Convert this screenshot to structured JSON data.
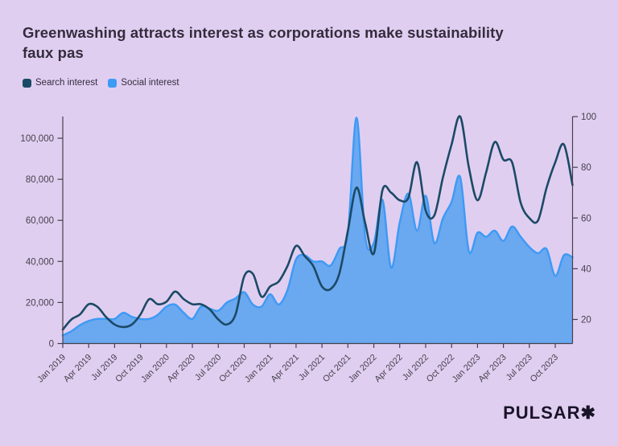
{
  "title": {
    "line1": "Greenwashing attracts interest as corporations make sustainability",
    "line2": "faux pas"
  },
  "legend": [
    {
      "label": "Search interest",
      "color": "#1b4a66"
    },
    {
      "label": "Social interest",
      "color": "#3d9af5"
    }
  ],
  "logo": {
    "text": "PULSAR✱"
  },
  "colors": {
    "background": "#e0cef0",
    "title": "#342c3e",
    "axis": "#46404d",
    "tick_label": "#46404d",
    "search_line": "#1b4a66",
    "social_fill": "#6aa8f0",
    "social_stroke": "#3d9af5"
  },
  "chart_data": {
    "type": "line",
    "title": "Greenwashing attracts interest as corporations make sustainability faux pas",
    "xlabel": "",
    "ylabel_left": "",
    "ylabel_right": "",
    "grid": false,
    "legend_position": "top-left",
    "x": {
      "frequency": "monthly",
      "start": "Jan 2019",
      "end": "Dec 2023",
      "tick_labels": [
        "Jan 2019",
        "Apr 2019",
        "Jul 2019",
        "Oct 2019",
        "Jan 2020",
        "Apr 2020",
        "Jul 2020",
        "Oct 2020",
        "Jan 2021",
        "Apr 2021",
        "Jul 2021",
        "Oct 2021",
        "Jan 2022",
        "Apr 2022",
        "Jul 2022",
        "Oct 2022",
        "Jan 2023",
        "Apr 2023",
        "Jul 2023",
        "Oct 2023"
      ],
      "ticks_every_n_months": 3
    },
    "left_axis": {
      "tick_values": [
        0,
        20000,
        40000,
        60000,
        80000,
        100000
      ],
      "tick_labels": [
        "0",
        "20,000",
        "40,000",
        "60,000",
        "80,000",
        "100,000"
      ],
      "range": [
        0,
        110000
      ]
    },
    "right_axis": {
      "tick_values": [
        20,
        40,
        60,
        80,
        100
      ],
      "tick_labels": [
        "20",
        "40",
        "60",
        "80",
        "100"
      ],
      "range": [
        10,
        100
      ]
    },
    "series": [
      {
        "name": "Search interest",
        "style": "line",
        "axis": "right",
        "color": "#1b4a66",
        "values": [
          16,
          20,
          22,
          26,
          25,
          21,
          18,
          17,
          18,
          22,
          28,
          26,
          27,
          31,
          28,
          26,
          26,
          24,
          20,
          18,
          22,
          37,
          38,
          29,
          33,
          35,
          41,
          49,
          45,
          41,
          33,
          32,
          38,
          55,
          72,
          58,
          46,
          71,
          70,
          67,
          68,
          82,
          63,
          61,
          76,
          89,
          100,
          80,
          67,
          78,
          90,
          83,
          82,
          66,
          60,
          59,
          72,
          82,
          89,
          73
        ]
      },
      {
        "name": "Social interest",
        "style": "area",
        "axis": "left",
        "color": "#3d9af5",
        "fill": "#6aa8f0",
        "values": [
          4000,
          6000,
          9000,
          11000,
          12000,
          12000,
          12000,
          15000,
          13000,
          12000,
          12000,
          14000,
          18000,
          19000,
          15000,
          12000,
          18000,
          17000,
          16000,
          20000,
          22000,
          25000,
          19000,
          18000,
          24000,
          19000,
          26000,
          41000,
          43000,
          40000,
          40000,
          38000,
          46000,
          54000,
          110000,
          52000,
          49000,
          70000,
          37000,
          59000,
          73000,
          55000,
          72000,
          49000,
          61000,
          69000,
          81000,
          45000,
          54000,
          52000,
          55000,
          50000,
          57000,
          52000,
          47000,
          44000,
          46000,
          33000,
          43000,
          42000
        ]
      }
    ]
  }
}
